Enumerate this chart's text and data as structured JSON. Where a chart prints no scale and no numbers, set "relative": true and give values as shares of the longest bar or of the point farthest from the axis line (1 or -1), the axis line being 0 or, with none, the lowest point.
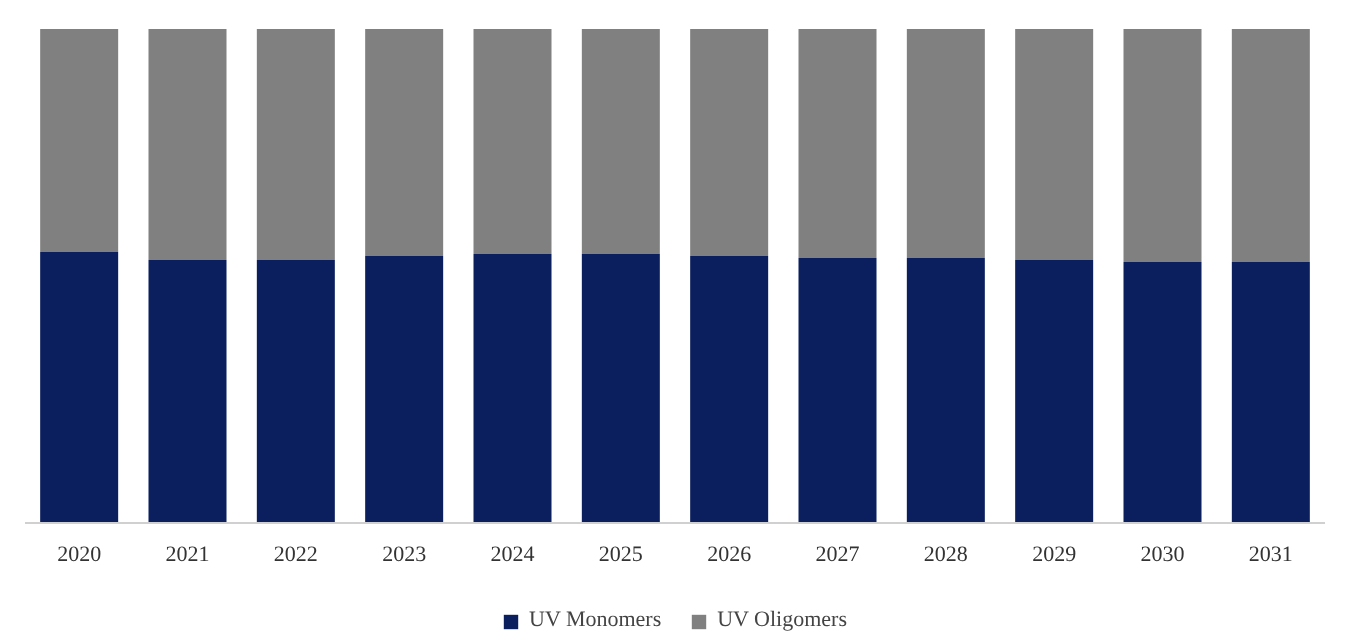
{
  "chart_data": {
    "type": "bar",
    "stacked": true,
    "relative": true,
    "categories": [
      "2020",
      "2021",
      "2022",
      "2023",
      "2024",
      "2025",
      "2026",
      "2027",
      "2028",
      "2029",
      "2030",
      "2031"
    ],
    "series": [
      {
        "name": "UV Monomers",
        "color": "#0b1f5e",
        "values": [
          0.548,
          0.532,
          0.532,
          0.54,
          0.544,
          0.544,
          0.54,
          0.536,
          0.536,
          0.532,
          0.528,
          0.528
        ]
      },
      {
        "name": "UV Oligomers",
        "color": "#808080",
        "values": [
          0.452,
          0.468,
          0.468,
          0.46,
          0.456,
          0.456,
          0.46,
          0.464,
          0.464,
          0.468,
          0.472,
          0.472
        ]
      }
    ],
    "legend": "bottom"
  }
}
